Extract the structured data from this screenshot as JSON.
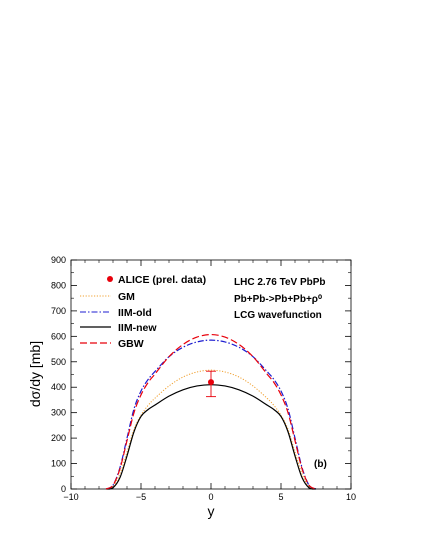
{
  "chart_data": {
    "type": "line",
    "xlabel": "y",
    "ylabel": "dσ/dy [mb]",
    "xlim": [
      -10,
      10
    ],
    "ylim": [
      0,
      900
    ],
    "x_ticks": [
      -10,
      -5,
      0,
      5,
      10
    ],
    "y_ticks": [
      0,
      100,
      200,
      300,
      400,
      500,
      600,
      700,
      800,
      900
    ],
    "grid": false,
    "legend_position": "top-left",
    "annotations": [
      "LHC 2.76 TeV PbPb",
      "Pb+Pb->Pb+Pb+ρ⁰",
      "LCG wavefunction",
      "(b)"
    ],
    "data_point": {
      "name": "ALICE (prel. data)",
      "x": 0,
      "y": 420,
      "y_err_low": 57,
      "y_err_high": 43,
      "color": "#e8000b"
    },
    "series": [
      {
        "name": "GM",
        "color": "#f0a030",
        "dash": "dotted",
        "x": [
          -7.5,
          -7.0,
          -6.5,
          -6.0,
          -5.5,
          -5.0,
          -4.5,
          -4.0,
          -3.0,
          -2.0,
          -1.0,
          0.0,
          1.0,
          2.0,
          3.0,
          4.0,
          4.5,
          5.0,
          5.5,
          6.0,
          6.5,
          7.0,
          7.5
        ],
        "values": [
          0,
          10,
          60,
          145,
          235,
          290,
          328,
          357,
          405,
          440,
          460,
          467,
          460,
          440,
          405,
          357,
          328,
          290,
          235,
          145,
          60,
          10,
          0
        ]
      },
      {
        "name": "IIM-old",
        "color": "#1c1cd0",
        "dash": "dashdot",
        "x": [
          -7.5,
          -7.0,
          -6.5,
          -6.0,
          -5.5,
          -5.0,
          -4.5,
          -4.0,
          -3.0,
          -2.0,
          -1.0,
          0.0,
          1.0,
          2.0,
          3.0,
          4.0,
          4.5,
          5.0,
          5.5,
          6.0,
          6.5,
          7.0,
          7.5
        ],
        "values": [
          0,
          15,
          85,
          200,
          315,
          385,
          430,
          462,
          520,
          557,
          578,
          585,
          578,
          557,
          520,
          462,
          430,
          385,
          315,
          200,
          85,
          15,
          0
        ]
      },
      {
        "name": "IIM-new",
        "color": "#000000",
        "dash": "solid",
        "x": [
          -7.5,
          -7.0,
          -6.5,
          -6.0,
          -5.5,
          -5.0,
          -4.5,
          -4.0,
          -3.0,
          -2.0,
          -1.0,
          0.0,
          1.0,
          2.0,
          3.0,
          4.0,
          4.5,
          5.0,
          5.5,
          6.0,
          6.5,
          7.0,
          7.5
        ],
        "values": [
          0,
          5,
          45,
          130,
          225,
          285,
          312,
          330,
          365,
          390,
          405,
          410,
          405,
          390,
          365,
          330,
          312,
          285,
          225,
          130,
          45,
          5,
          0
        ]
      },
      {
        "name": "GBW",
        "color": "#e8000b",
        "dash": "dashed",
        "x": [
          -7.5,
          -7.0,
          -6.5,
          -6.0,
          -5.5,
          -5.0,
          -4.5,
          -4.0,
          -3.0,
          -2.0,
          -1.0,
          0.0,
          1.0,
          2.0,
          3.0,
          4.0,
          4.5,
          5.0,
          5.5,
          6.0,
          6.5,
          7.0,
          7.5
        ],
        "values": [
          0,
          15,
          80,
          190,
          300,
          370,
          418,
          452,
          520,
          568,
          597,
          607,
          597,
          568,
          520,
          452,
          418,
          370,
          300,
          190,
          80,
          15,
          0
        ]
      }
    ]
  }
}
